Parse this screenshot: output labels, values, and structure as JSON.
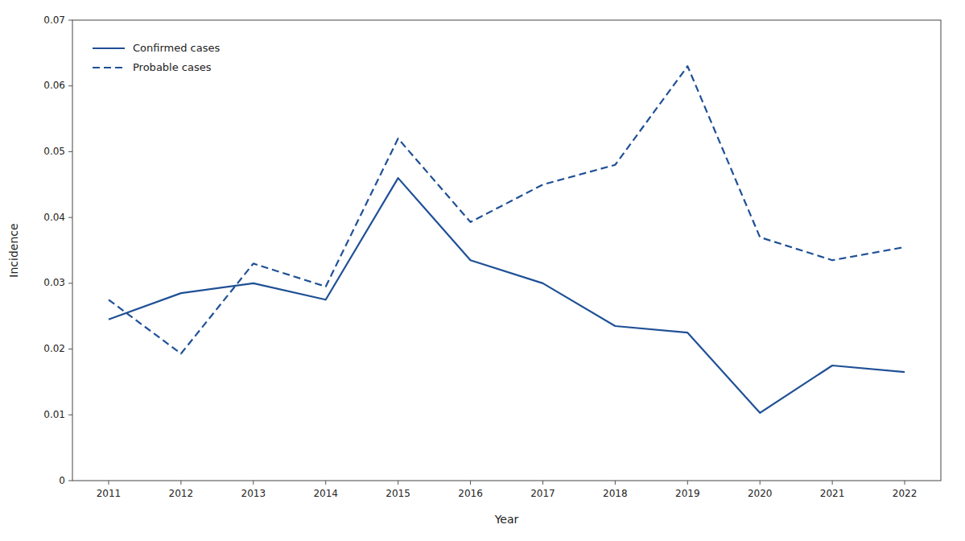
{
  "chart_data": {
    "type": "line",
    "x": [
      2011,
      2012,
      2013,
      2014,
      2015,
      2016,
      2017,
      2018,
      2019,
      2020,
      2021,
      2022
    ],
    "series": [
      {
        "name": "Confirmed cases",
        "color": "#1f5096",
        "line_style": "solid",
        "values": [
          0.0245,
          0.0285,
          0.03,
          0.0275,
          0.046,
          0.0335,
          0.03,
          0.0235,
          0.0225,
          0.0103,
          0.0175,
          0.0165
        ]
      },
      {
        "name": "Probable cases",
        "color": "#1f5096",
        "line_style": "dashed",
        "values": [
          0.0275,
          0.0193,
          0.033,
          0.0295,
          0.052,
          0.0393,
          0.045,
          0.048,
          0.063,
          0.037,
          0.0335,
          0.0355
        ]
      }
    ],
    "xlabel": "Year",
    "ylabel": "Incidence",
    "xlim": [
      2010.5,
      2022.5
    ],
    "xticks": [
      2011,
      2012,
      2013,
      2014,
      2015,
      2016,
      2017,
      2018,
      2019,
      2020,
      2021,
      2022
    ],
    "ylim": [
      0,
      0.07
    ],
    "yticks": [
      0,
      0.01,
      0.02,
      0.03,
      0.04,
      0.05,
      0.06,
      0.07
    ],
    "grid": false,
    "legend": "upper left"
  }
}
